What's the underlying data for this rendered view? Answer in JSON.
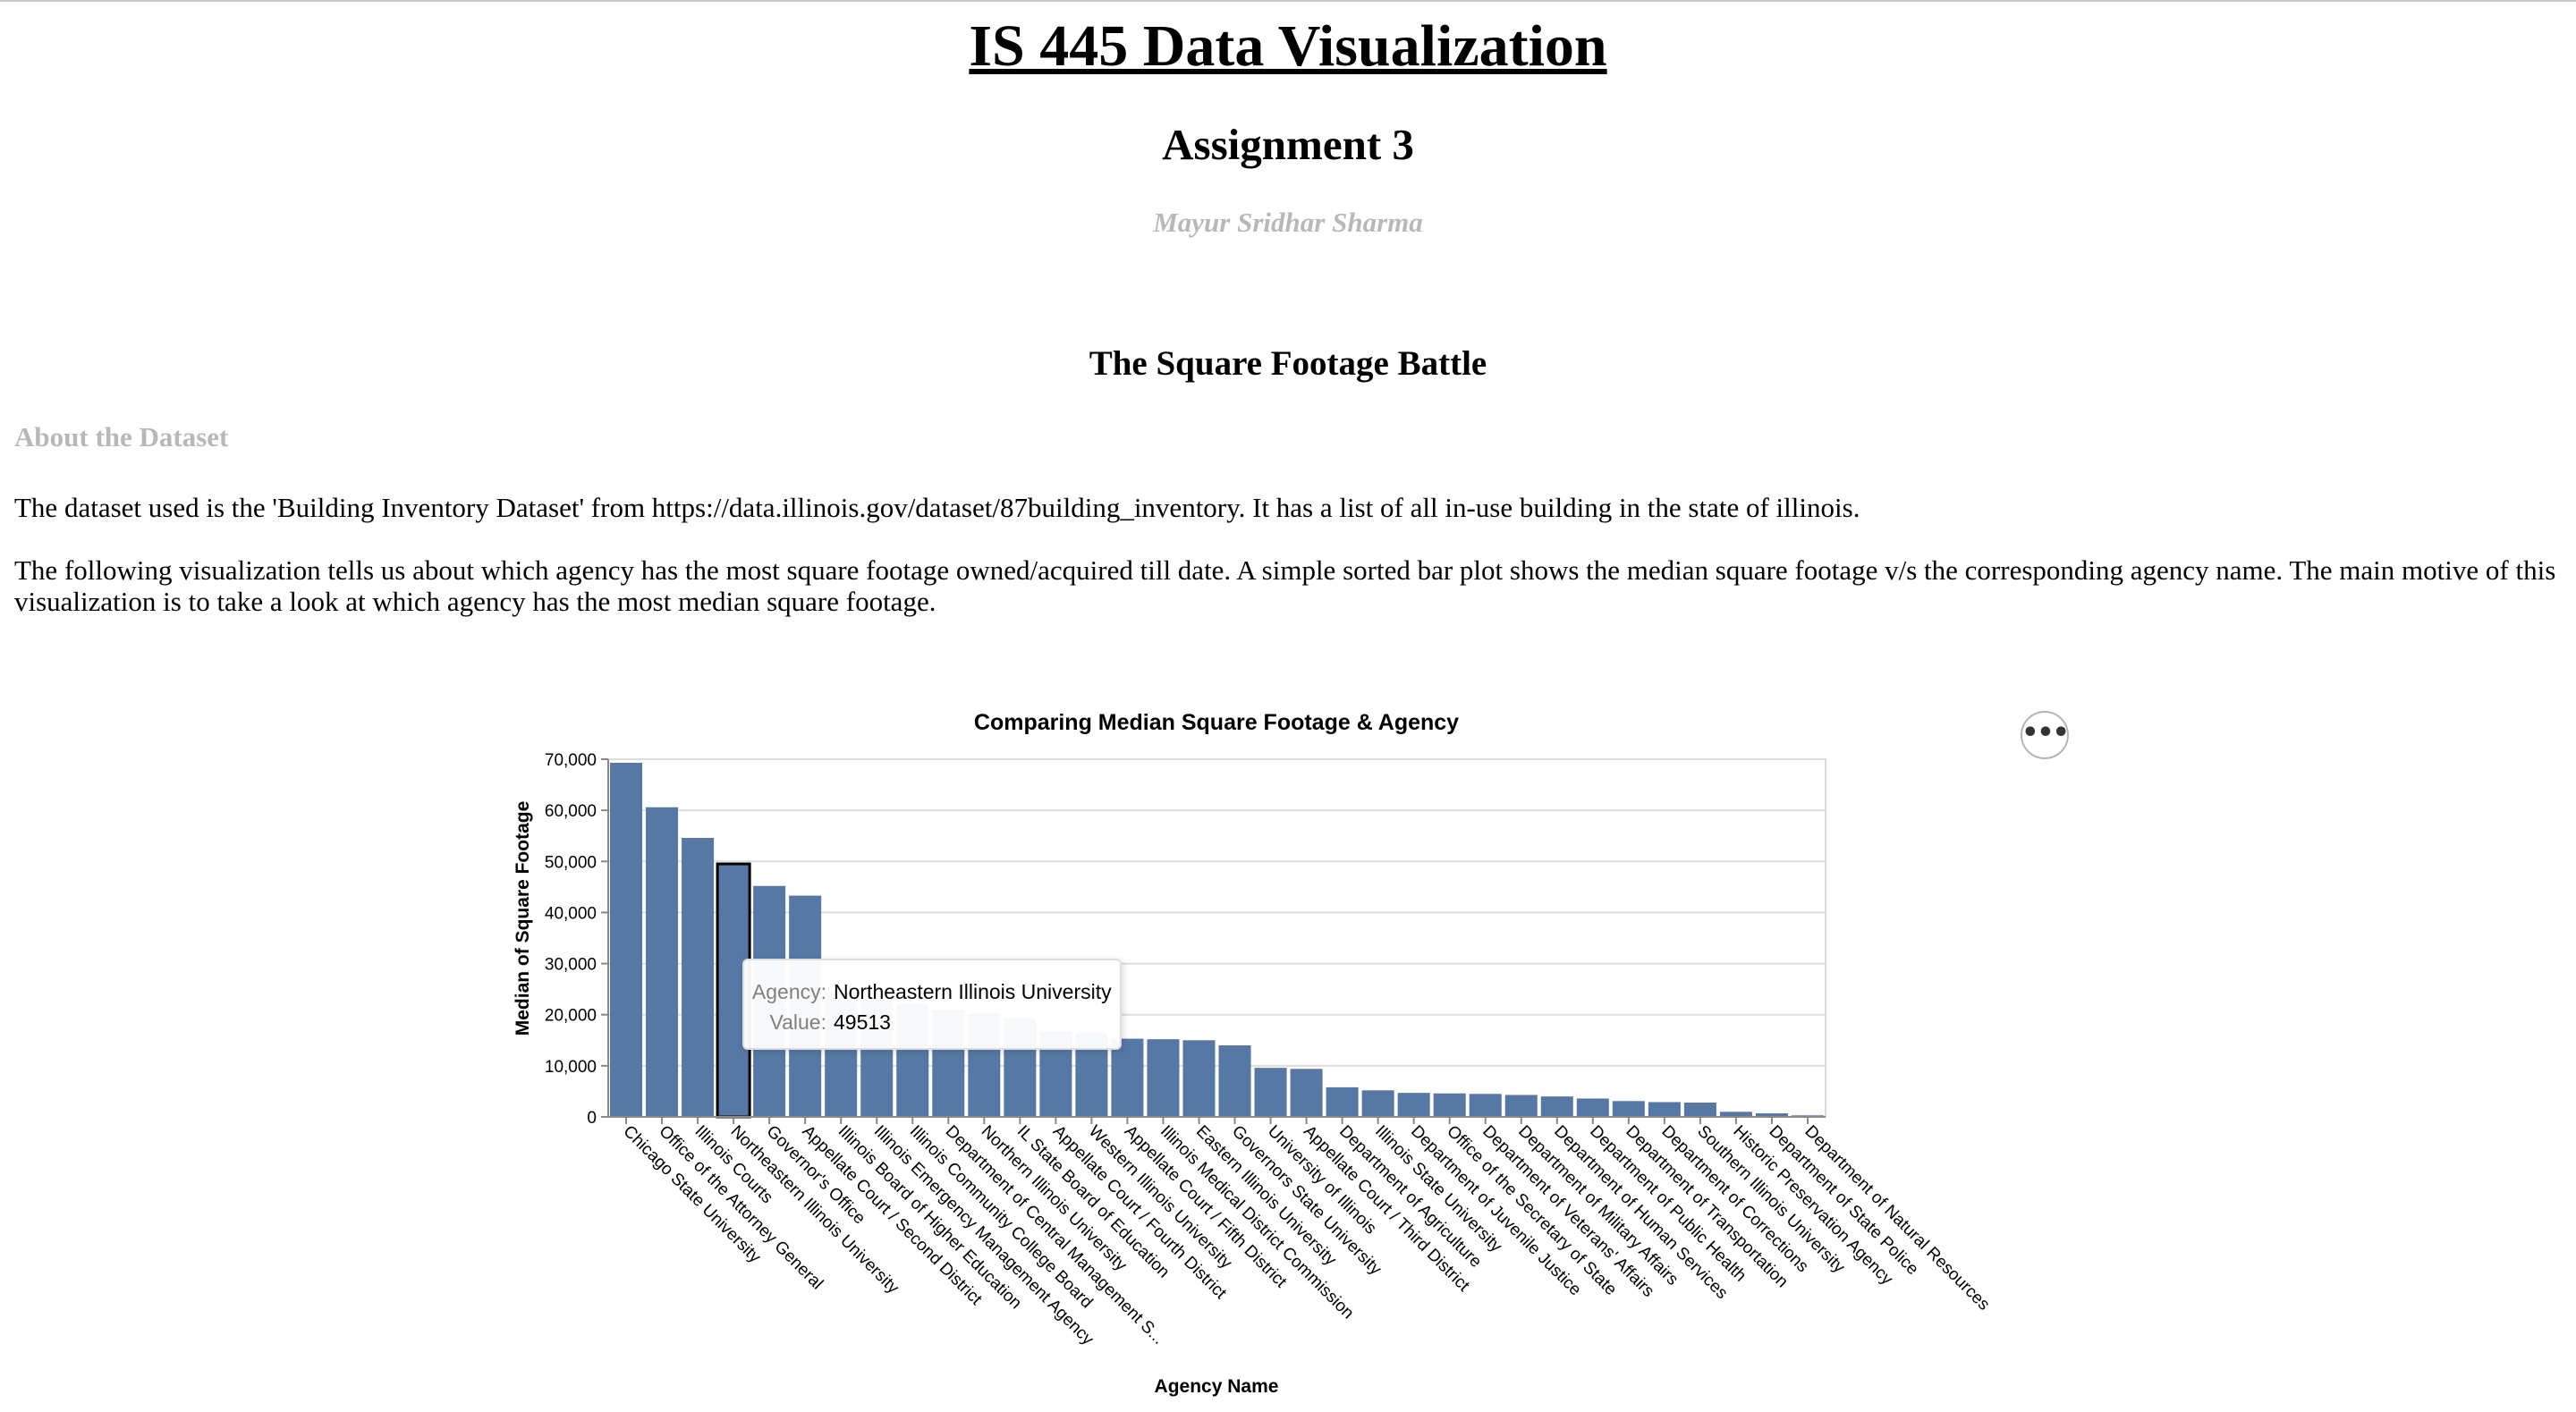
{
  "page": {
    "title": "IS 445 Data Visualization",
    "subtitle": "Assignment 3",
    "author": "Mayur Sridhar Sharma",
    "section_title": "The Square Footage Battle",
    "about_heading": "About the Dataset",
    "paragraph_1": "The dataset used is the 'Building Inventory Dataset' from https://data.illinois.gov/dataset/87building_inventory. It has a list of all in-use building in the state of illinois.",
    "paragraph_2": "The following visualization tells us about which agency has the most square footage owned/acquired till date. A simple sorted bar plot shows the median square footage v/s the corresponding agency name. The main motive of this visualization is to take a look at which agency has the most median square footage."
  },
  "actions_menu": {
    "icon": "ellipsis-icon",
    "label": "•••"
  },
  "tooltip": {
    "key_agency": "Agency:",
    "key_value": "Value:",
    "agency": "Northeastern Illinois University",
    "value": "49513"
  },
  "colors": {
    "bar": "#5778a4",
    "grid": "#dddddd",
    "axis": "#888888",
    "highlight_stroke": "#000000"
  },
  "chart_data": {
    "type": "bar",
    "title": "Comparing Median Square Footage & Agency",
    "xlabel": "Agency Name",
    "ylabel": "Median of Square Footage",
    "ylim": [
      0,
      70000
    ],
    "yticks": [
      0,
      10000,
      20000,
      30000,
      40000,
      50000,
      60000,
      70000
    ],
    "ytick_labels": [
      "0",
      "10,000",
      "20,000",
      "30,000",
      "40,000",
      "50,000",
      "60,000",
      "70,000"
    ],
    "grid": true,
    "highlighted": "Northeastern Illinois University",
    "categories": [
      "Chicago State University",
      "Office of the Attorney General",
      "Illinois Courts",
      "Northeastern Illinois University",
      "Governor's Office",
      "Appellate Court / Second District",
      "Illinois Board of Higher Education",
      "Illinois Emergency Management Agency",
      "Illinois Community College Board",
      "Department of Central Management S...",
      "Northern Illinois University",
      "IL State Board of Education",
      "Appellate Court / Fourth District",
      "Western Illinois University",
      "Appellate Court / Fifth District",
      "Illinois Medical District Commission",
      "Eastern Illinois University",
      "Governors State University",
      "University of Illinois",
      "Appellate Court / Third District",
      "Department of Agriculture",
      "Illinois State University",
      "Department of Juvenile Justice",
      "Office of the Secretary of State",
      "Department of Veterans' Affairs",
      "Department of Military Affairs",
      "Department of Human Services",
      "Department of Public Health",
      "Department of Transportation",
      "Department of Corrections",
      "Southern Illinois University",
      "Historic Preservation Agency",
      "Department of State Police",
      "Department of Natural Resources"
    ],
    "values": [
      69300,
      60600,
      54600,
      49513,
      45200,
      43300,
      24500,
      23000,
      22000,
      21000,
      20300,
      19300,
      16800,
      16400,
      15300,
      15200,
      15000,
      14000,
      9600,
      9400,
      5800,
      5200,
      4700,
      4600,
      4500,
      4300,
      4000,
      3600,
      3100,
      2900,
      2800,
      1000,
      700,
      300
    ]
  }
}
